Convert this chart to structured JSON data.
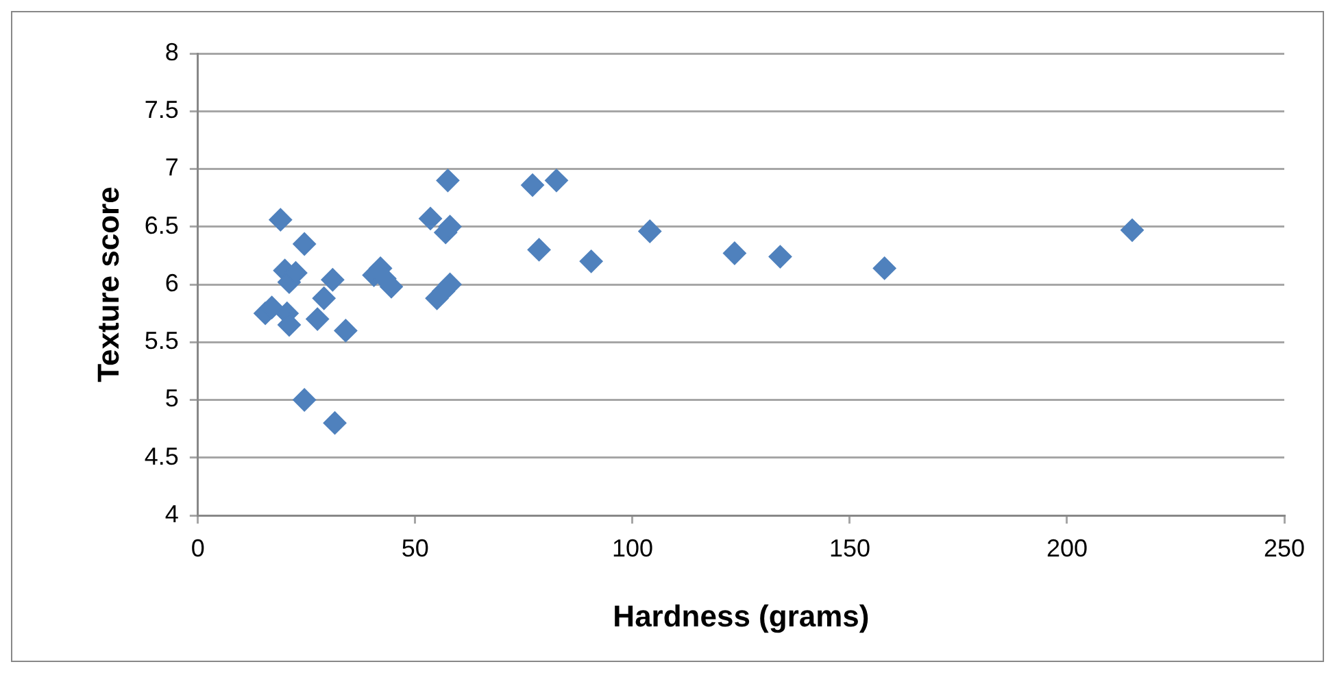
{
  "chart_data": {
    "type": "scatter",
    "xlabel": "Hardness (grams)",
    "ylabel": "Texture score",
    "x": [
      15.5,
      17,
      19,
      20,
      20.5,
      21,
      21,
      22.5,
      24.5,
      24.5,
      27.5,
      29,
      31,
      31.5,
      34,
      40.5,
      42,
      43,
      44.5,
      53.5,
      55,
      56.5,
      57,
      57.5,
      58,
      58,
      77,
      78.5,
      82.5,
      90.5,
      104,
      123.5,
      134,
      158,
      215
    ],
    "series": [
      {
        "color": "#4f81bd",
        "values": [
          5.75,
          5.8,
          6.56,
          6.12,
          5.75,
          5.65,
          6.02,
          6.1,
          6.35,
          5.0,
          5.7,
          5.88,
          6.04,
          4.8,
          5.6,
          6.08,
          6.14,
          6.05,
          5.98,
          6.57,
          5.88,
          5.94,
          6.45,
          6.9,
          6.5,
          6.0,
          6.86,
          6.3,
          6.9,
          6.2,
          6.46,
          6.27,
          6.24,
          6.14,
          6.47
        ]
      }
    ],
    "xlim": [
      0,
      250
    ],
    "xticks": [
      0,
      50,
      100,
      150,
      200,
      250
    ],
    "ylim": [
      4,
      8
    ],
    "yticks": [
      4,
      4.5,
      5,
      5.5,
      6,
      6.5,
      7,
      7.5,
      8
    ],
    "grid": "y",
    "legend": false,
    "marker": "diamond"
  }
}
